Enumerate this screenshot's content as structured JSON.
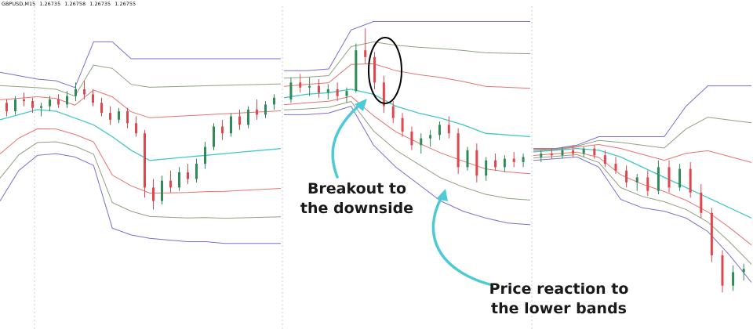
{
  "header": {
    "symbol": "GBPUSD,M15",
    "quote_1": "1.26735",
    "quote_2": "1.26758",
    "quote_3": "1.26735",
    "quote_4": "1.26755"
  },
  "annotations": {
    "breakout_line1": "Breakout to",
    "breakout_line2": "the downside",
    "reaction_line1": "Price reaction to",
    "reaction_line2": "the lower bands"
  },
  "colors": {
    "background": "#ffffff",
    "candle_up": "#2e8b57",
    "candle_down": "#e0474c",
    "band_outer": "#7b6fd0",
    "band_middle": "#8fa37f",
    "band_inner": "#e8736e",
    "band_center": "#40c8c8",
    "arrow": "#4ec9d6",
    "highlight_circle": "#000000",
    "separator": "#cfcfcf"
  },
  "chart_data": {
    "type": "candlestick",
    "symbol": "GBPUSD",
    "timeframe": "M15",
    "indicator": "multi-level bands (outer, middle, inner, center)",
    "segments": [
      {
        "center": [
          1.2658,
          1.2661,
          1.2664,
          1.2663,
          1.2659,
          1.2655,
          1.2648,
          1.264,
          1.2634,
          1.2635,
          1.2636,
          1.2637,
          1.2638,
          1.2639,
          1.264,
          1.2641
        ],
        "outer_upper": [
          1.2686,
          1.2684,
          1.2682,
          1.2681,
          1.2677,
          1.2704,
          1.2704,
          1.2694,
          1.2694,
          1.2694,
          1.2694,
          1.2694,
          1.2694,
          1.2694,
          1.2694,
          1.2694
        ],
        "outer_lower": [
          1.261,
          1.2628,
          1.2637,
          1.2638,
          1.2636,
          1.2631,
          1.2594,
          1.259,
          1.2588,
          1.2587,
          1.2586,
          1.2586,
          1.2585,
          1.2585,
          1.2585,
          1.2585
        ],
        "candles": [
          [
            1.2668,
            1.267,
            1.266,
            1.2663
          ],
          [
            1.2663,
            1.2672,
            1.2661,
            1.267
          ],
          [
            1.267,
            1.2674,
            1.2666,
            1.2669
          ],
          [
            1.2669,
            1.2671,
            1.2662,
            1.2665
          ],
          [
            1.2665,
            1.2668,
            1.266,
            1.2666
          ],
          [
            1.2666,
            1.2672,
            1.2663,
            1.267
          ],
          [
            1.267,
            1.2673,
            1.2665,
            1.2667
          ],
          [
            1.2667,
            1.2675,
            1.2665,
            1.2672
          ],
          [
            1.2672,
            1.268,
            1.2669,
            1.2676
          ],
          [
            1.2676,
            1.2681,
            1.267,
            1.2673
          ],
          [
            1.2673,
            1.2676,
            1.2666,
            1.2668
          ],
          [
            1.2668,
            1.2671,
            1.266,
            1.2662
          ],
          [
            1.2662,
            1.2666,
            1.2655,
            1.2658
          ],
          [
            1.2658,
            1.2665,
            1.2656,
            1.2663
          ],
          [
            1.2663,
            1.2665,
            1.2653,
            1.2656
          ],
          [
            1.2656,
            1.266,
            1.2648,
            1.265
          ],
          [
            1.265,
            1.2652,
            1.2612,
            1.2618
          ],
          [
            1.2618,
            1.2623,
            1.2605,
            1.261
          ],
          [
            1.261,
            1.2625,
            1.2608,
            1.2622
          ],
          [
            1.2622,
            1.2628,
            1.2615,
            1.2618
          ],
          [
            1.2618,
            1.263,
            1.2616,
            1.2627
          ],
          [
            1.2627,
            1.2632,
            1.262,
            1.2623
          ],
          [
            1.2623,
            1.2635,
            1.2621,
            1.2632
          ],
          [
            1.2632,
            1.2645,
            1.2629,
            1.2642
          ],
          [
            1.2642,
            1.2656,
            1.264,
            1.2654
          ],
          [
            1.2654,
            1.2658,
            1.2646,
            1.265
          ],
          [
            1.265,
            1.2662,
            1.2648,
            1.266
          ],
          [
            1.266,
            1.2664,
            1.2652,
            1.2655
          ],
          [
            1.2655,
            1.2666,
            1.2653,
            1.2664
          ],
          [
            1.2664,
            1.267,
            1.2658,
            1.2661
          ],
          [
            1.2661,
            1.2669,
            1.2659,
            1.2667
          ],
          [
            1.2667,
            1.2673,
            1.2664,
            1.2671
          ]
        ]
      },
      {
        "center": [
          1.2671,
          1.2673,
          1.2674,
          1.2676,
          1.2673,
          1.2666,
          1.2662,
          1.2659,
          1.2655,
          1.265,
          1.2649,
          1.2648
        ],
        "outer_upper": [
          1.2687,
          1.2687,
          1.2688,
          1.2711,
          1.2716,
          1.2716,
          1.2716,
          1.2716,
          1.2716,
          1.2716,
          1.2716,
          1.2716
        ],
        "outer_lower": [
          1.2661,
          1.2661,
          1.2662,
          1.2666,
          1.2643,
          1.263,
          1.262,
          1.261,
          1.2604,
          1.26,
          1.2597,
          1.2596
        ],
        "candles": [
          [
            1.267,
            1.2683,
            1.2668,
            1.268
          ],
          [
            1.268,
            1.2685,
            1.2674,
            1.2677
          ],
          [
            1.2677,
            1.2683,
            1.2672,
            1.2678
          ],
          [
            1.2678,
            1.2682,
            1.2671,
            1.2674
          ],
          [
            1.2674,
            1.2679,
            1.267,
            1.2676
          ],
          [
            1.2676,
            1.268,
            1.2669,
            1.2672
          ],
          [
            1.2672,
            1.2677,
            1.2668,
            1.2675
          ],
          [
            1.2675,
            1.2703,
            1.2674,
            1.2699
          ],
          [
            1.2699,
            1.2712,
            1.2691,
            1.2695
          ],
          [
            1.2695,
            1.2698,
            1.2676,
            1.268
          ],
          [
            1.268,
            1.2684,
            1.2662,
            1.2666
          ],
          [
            1.2666,
            1.2669,
            1.2656,
            1.2659
          ],
          [
            1.2659,
            1.2662,
            1.2648,
            1.2651
          ],
          [
            1.2651,
            1.2654,
            1.264,
            1.2643
          ],
          [
            1.2643,
            1.265,
            1.2638,
            1.2647
          ],
          [
            1.2647,
            1.2652,
            1.2642,
            1.2649
          ],
          [
            1.2649,
            1.2657,
            1.2646,
            1.2655
          ],
          [
            1.2655,
            1.266,
            1.2647,
            1.265
          ],
          [
            1.265,
            1.2653,
            1.2626,
            1.263
          ],
          [
            1.263,
            1.2642,
            1.2628,
            1.264
          ],
          [
            1.264,
            1.2644,
            1.2621,
            1.2625
          ],
          [
            1.2625,
            1.2636,
            1.2622,
            1.2634
          ],
          [
            1.2634,
            1.2638,
            1.2628,
            1.263
          ],
          [
            1.263,
            1.2637,
            1.2627,
            1.2635
          ],
          [
            1.2635,
            1.2639,
            1.263,
            1.2633
          ],
          [
            1.2633,
            1.2638,
            1.263,
            1.2636
          ]
        ]
      },
      {
        "center": [
          1.2639,
          1.264,
          1.2641,
          1.264,
          1.2636,
          1.263,
          1.2624,
          1.2618,
          1.2612,
          1.2606,
          1.26
        ],
        "outer_upper": [
          1.2641,
          1.2641,
          1.2643,
          1.2648,
          1.2648,
          1.2648,
          1.2648,
          1.2666,
          1.2678,
          1.2678,
          1.2678
        ],
        "outer_lower": [
          1.2634,
          1.2635,
          1.2636,
          1.263,
          1.2611,
          1.2606,
          1.2604,
          1.26,
          1.2592,
          1.2578,
          1.2562
        ],
        "candles": [
          [
            1.2636,
            1.264,
            1.2633,
            1.2638
          ],
          [
            1.2638,
            1.2641,
            1.2635,
            1.2637
          ],
          [
            1.2637,
            1.2642,
            1.2635,
            1.264
          ],
          [
            1.264,
            1.2643,
            1.2636,
            1.2638
          ],
          [
            1.2638,
            1.2642,
            1.2636,
            1.2641
          ],
          [
            1.2641,
            1.2643,
            1.2635,
            1.2637
          ],
          [
            1.2637,
            1.264,
            1.263,
            1.2632
          ],
          [
            1.2632,
            1.2636,
            1.2626,
            1.2628
          ],
          [
            1.2628,
            1.2631,
            1.2618,
            1.2621
          ],
          [
            1.2621,
            1.2626,
            1.2616,
            1.2624
          ],
          [
            1.2624,
            1.2628,
            1.2613,
            1.2616
          ],
          [
            1.2616,
            1.2634,
            1.2614,
            1.263
          ],
          [
            1.263,
            1.2634,
            1.2615,
            1.2618
          ],
          [
            1.2618,
            1.2632,
            1.2616,
            1.2629
          ],
          [
            1.2629,
            1.2633,
            1.2612,
            1.2615
          ],
          [
            1.2615,
            1.262,
            1.26,
            1.2603
          ],
          [
            1.2603,
            1.2606,
            1.2574,
            1.2578
          ],
          [
            1.2578,
            1.2581,
            1.2556,
            1.256
          ],
          [
            1.256,
            1.2572,
            1.2557,
            1.2568
          ],
          [
            1.2568,
            1.2573,
            1.2563,
            1.257
          ]
        ]
      }
    ]
  }
}
